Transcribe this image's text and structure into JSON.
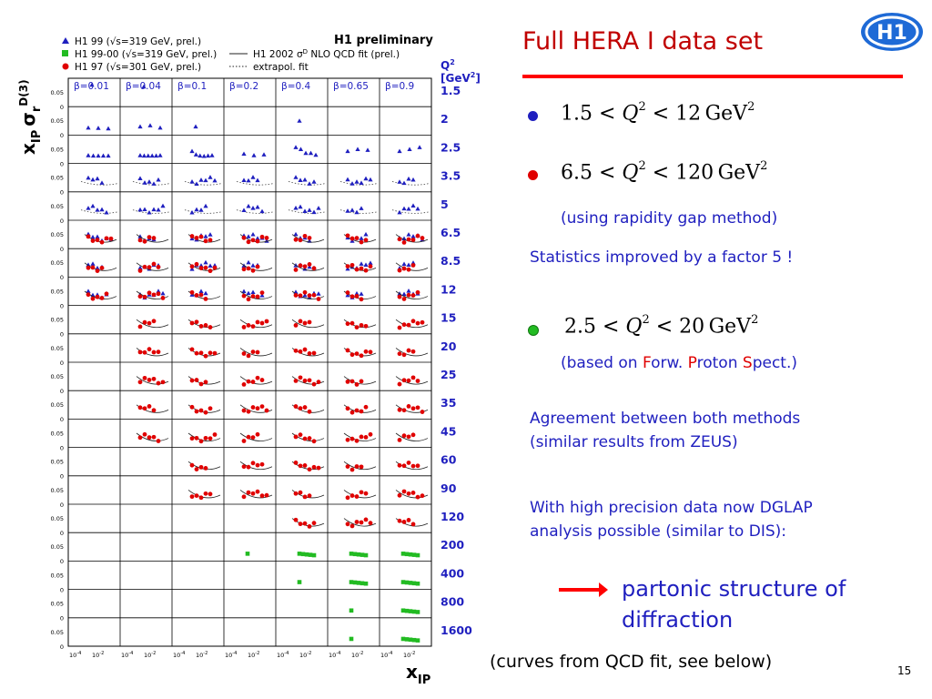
{
  "slide": {
    "title": "Full HERA I data set",
    "page_number": "15",
    "caption": "(curves from QCD fit, see below)",
    "logo_text": "H1"
  },
  "bullets": [
    {
      "color": "#1f1fbf",
      "low": "1.5",
      "var": "Q",
      "exp": "2",
      "high": "12",
      "unit": "GeV",
      "unit_exp": "2"
    },
    {
      "color": "#e00000",
      "low": "6.5",
      "var": "Q",
      "exp": "2",
      "high": "120",
      "unit": "GeV",
      "unit_exp": "2"
    },
    {
      "color": "#22bb22",
      "low": "2.5",
      "var": "Q",
      "exp": "2",
      "high": "20",
      "unit": "GeV",
      "unit_exp": "2"
    }
  ],
  "notes": {
    "rapidity": "(using rapidity gap method)",
    "statistics": "Statistics improved by a factor 5 !",
    "fps_prefix": "(based on ",
    "fps_f": "F",
    "fps_orw": "orw. ",
    "fps_p": "P",
    "fps_roton": "roton ",
    "fps_s": "S",
    "fps_pect": "pect.)",
    "agree_line1": "Agreement between both methods",
    "agree_line2": "(similar results from ZEUS)",
    "dglap_line1": "With high precision data now DGLAP",
    "dglap_line2": "analysis possible (similar to DIS):",
    "partonic_line1": "partonic structure of",
    "partonic_line2": "diffraction"
  },
  "chart_data": {
    "type": "scatter",
    "title": "H1 preliminary",
    "ylabel_main": "x",
    "ylabel_sub": "IP",
    "ylabel_sigma": "σ",
    "ylabel_r": "r",
    "ylabel_d3": "D(3)",
    "xlabel_main": "x",
    "xlabel_sub": "IP",
    "q2_header_line1": "Q",
    "q2_header_sup": "2",
    "q2_header_line2": "[GeV",
    "q2_header_line2_end": "]",
    "beta_prefix": "β",
    "beta_values": [
      "=0.01",
      "=0.04",
      "=0.1",
      "=0.2",
      "=0.4",
      "=0.65",
      "=0.9"
    ],
    "q2_values": [
      "1.5",
      "2",
      "2.5",
      "3.5",
      "5",
      "6.5",
      "8.5",
      "12",
      "15",
      "20",
      "25",
      "35",
      "45",
      "60",
      "90",
      "120",
      "200",
      "400",
      "800",
      "1600"
    ],
    "y_tick_top": "0.05",
    "y_tick_zero": "0",
    "x_ticks": [
      "10",
      "10"
    ],
    "x_tick_exps": [
      "-4",
      "-2"
    ],
    "legend": [
      {
        "marker": "triangle",
        "color": "#1f1fbf",
        "label_a": "H1 99 (",
        "label_sqrt": "√",
        "label_b": "s=319 GeV, prel.)"
      },
      {
        "marker": "square",
        "color": "#22bb22",
        "label_a": "H1 99-00 (",
        "label_sqrt": "√",
        "label_b": "s=319 GeV, prel.)"
      },
      {
        "marker": "circle",
        "color": "#e00000",
        "label_a": "H1 97 (",
        "label_sqrt": "√",
        "label_b": "s=301 GeV, prel.)"
      }
    ],
    "legend_curves": [
      {
        "style": "solid",
        "label_a": "H1 2002 σ",
        "label_sup": "D",
        "label_b": " NLO QCD fit (prel.)"
      },
      {
        "style": "dotted",
        "label_a": "extrapol. fit",
        "label_sup": "",
        "label_b": ""
      }
    ],
    "series_colors": {
      "H1 99": "#1f1fbf",
      "H1 99-00": "#22bb22",
      "H1 97": "#e00000"
    },
    "cells": [
      {
        "row": 0,
        "col": 0,
        "series": "H1 99",
        "y": [
          0.05
        ]
      },
      {
        "row": 0,
        "col": 1,
        "series": "H1 99",
        "y": [
          0.045
        ]
      },
      {
        "row": 1,
        "col": 0,
        "series": "H1 99",
        "y": [
          0.012,
          0.011,
          0.01
        ]
      },
      {
        "row": 1,
        "col": 1,
        "series": "H1 99",
        "y": [
          0.015,
          0.018,
          0.012
        ]
      },
      {
        "row": 1,
        "col": 2,
        "series": "H1 99",
        "y": [
          0.015
        ]
      },
      {
        "row": 1,
        "col": 4,
        "series": "H1 99",
        "y": [
          0.03
        ]
      },
      {
        "row": 2,
        "col": 0,
        "series": "H1 99",
        "y": [
          0.014,
          0.013,
          0.013,
          0.013,
          0.013
        ]
      },
      {
        "row": 2,
        "col": 1,
        "series": "H1 99",
        "y": [
          0.014,
          0.013,
          0.013,
          0.013,
          0.013,
          0.014
        ]
      },
      {
        "row": 2,
        "col": 2,
        "series": "H1 99",
        "y": [
          0.025,
          0.016,
          0.013,
          0.012,
          0.013,
          0.014
        ]
      },
      {
        "row": 2,
        "col": 3,
        "series": "H1 99",
        "y": [
          0.018,
          0.014,
          0.016
        ]
      },
      {
        "row": 2,
        "col": 4,
        "series": "H1 99",
        "y": [
          0.035,
          0.03,
          0.02,
          0.02,
          0.015
        ]
      },
      {
        "row": 2,
        "col": 5,
        "series": "H1 99",
        "y": [
          0.025,
          0.03,
          0.028
        ]
      },
      {
        "row": 2,
        "col": 6,
        "series": "H1 99",
        "y": [
          0.025,
          0.03,
          0.035
        ]
      }
    ],
    "fill_rows": {
      "blue": [
        3,
        4,
        5,
        6,
        7
      ],
      "red": [
        5,
        6,
        7,
        8,
        9,
        10,
        11,
        12,
        13,
        14,
        15
      ],
      "green": [
        16,
        17,
        18,
        19
      ]
    }
  }
}
